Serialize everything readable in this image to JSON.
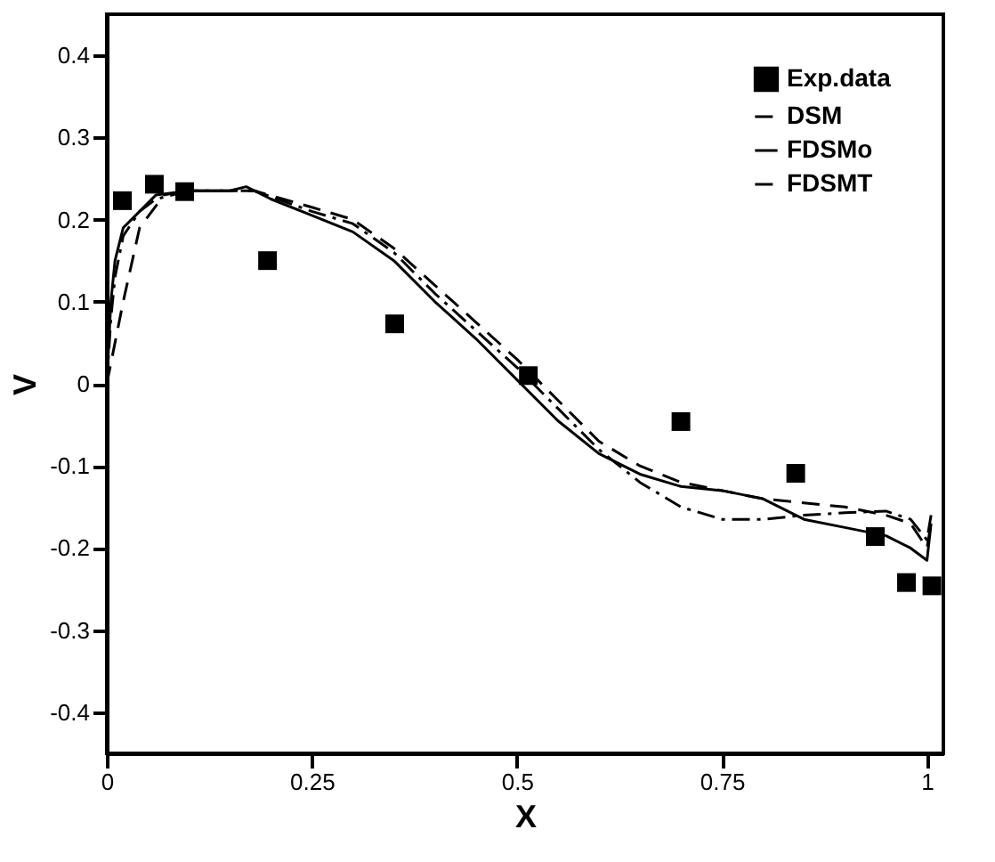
{
  "chart_data": {
    "type": "line",
    "xlabel": "X",
    "ylabel": "V",
    "xlim": [
      0,
      1.02
    ],
    "ylim": [
      -0.45,
      0.45
    ],
    "xticks": [
      0,
      0.25,
      0.5,
      0.75,
      1
    ],
    "yticks": [
      -0.4,
      -0.3,
      -0.2,
      -0.1,
      0,
      0.1,
      0.2,
      0.3,
      0.4
    ],
    "grid": false,
    "legend": "top right",
    "series": [
      {
        "name": "Exp.data",
        "type": "scatter",
        "marker": "square",
        "color": "#000000",
        "x": [
          0.019,
          0.058,
          0.095,
          0.196,
          0.351,
          0.514,
          0.7,
          0.84,
          0.937,
          0.975,
          1.006
        ],
        "values": [
          0.223,
          0.243,
          0.234,
          0.15,
          0.073,
          0.01,
          -0.046,
          -0.109,
          -0.186,
          -0.242,
          -0.246
        ]
      },
      {
        "name": "DSM",
        "line_style": "dashed",
        "color": "#000000",
        "x": [
          0,
          0.01,
          0.02,
          0.04,
          0.07,
          0.1,
          0.15,
          0.18,
          0.25,
          0.3,
          0.35,
          0.4,
          0.45,
          0.5,
          0.55,
          0.6,
          0.65,
          0.7,
          0.75,
          0.8,
          0.85,
          0.9,
          0.95,
          0.98,
          1.0,
          1.005
        ],
        "values": [
          0,
          0.05,
          0.1,
          0.19,
          0.23,
          0.235,
          0.235,
          0.235,
          0.215,
          0.2,
          0.165,
          0.12,
          0.075,
          0.03,
          -0.02,
          -0.07,
          -0.1,
          -0.12,
          -0.13,
          -0.14,
          -0.145,
          -0.15,
          -0.16,
          -0.17,
          -0.2,
          -0.17
        ]
      },
      {
        "name": "FDSMo",
        "line_style": "solid",
        "color": "#000000",
        "x": [
          0,
          0.005,
          0.01,
          0.02,
          0.04,
          0.06,
          0.1,
          0.15,
          0.17,
          0.2,
          0.25,
          0.3,
          0.35,
          0.4,
          0.45,
          0.5,
          0.55,
          0.6,
          0.65,
          0.7,
          0.75,
          0.8,
          0.85,
          0.9,
          0.95,
          0.98,
          1.0,
          1.005
        ],
        "values": [
          0,
          0.1,
          0.15,
          0.19,
          0.21,
          0.23,
          0.235,
          0.235,
          0.24,
          0.225,
          0.205,
          0.185,
          0.15,
          0.1,
          0.055,
          0.005,
          -0.045,
          -0.085,
          -0.11,
          -0.125,
          -0.13,
          -0.14,
          -0.165,
          -0.175,
          -0.185,
          -0.2,
          -0.215,
          -0.17
        ]
      },
      {
        "name": "FDSMT",
        "line_style": "dashdot",
        "color": "#000000",
        "x": [
          0,
          0.005,
          0.01,
          0.02,
          0.04,
          0.06,
          0.1,
          0.15,
          0.18,
          0.25,
          0.3,
          0.35,
          0.4,
          0.45,
          0.5,
          0.55,
          0.6,
          0.65,
          0.7,
          0.75,
          0.8,
          0.85,
          0.9,
          0.95,
          0.98,
          1.0,
          1.005
        ],
        "values": [
          0,
          0.08,
          0.13,
          0.18,
          0.21,
          0.225,
          0.235,
          0.235,
          0.235,
          0.21,
          0.195,
          0.16,
          0.11,
          0.065,
          0.02,
          -0.03,
          -0.08,
          -0.12,
          -0.15,
          -0.165,
          -0.165,
          -0.16,
          -0.157,
          -0.155,
          -0.165,
          -0.19,
          -0.16
        ]
      }
    ]
  }
}
